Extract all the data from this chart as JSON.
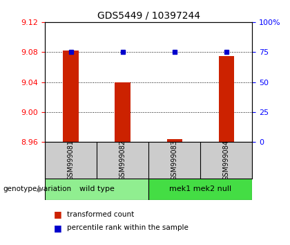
{
  "title": "GDS5449 / 10397244",
  "samples": [
    "GSM999081",
    "GSM999082",
    "GSM999083",
    "GSM999084"
  ],
  "red_values": [
    9.082,
    9.04,
    8.964,
    9.075
  ],
  "blue_values": [
    75,
    75,
    75,
    75
  ],
  "ylim_left": [
    8.96,
    9.12
  ],
  "ylim_right": [
    0,
    100
  ],
  "yticks_left": [
    8.96,
    9.0,
    9.04,
    9.08,
    9.12
  ],
  "yticks_right": [
    0,
    25,
    50,
    75,
    100
  ],
  "ytick_labels_right": [
    "0",
    "25",
    "50",
    "75",
    "100%"
  ],
  "groups": [
    {
      "label": "wild type",
      "samples": [
        0,
        1
      ],
      "color": "#90EE90"
    },
    {
      "label": "mek1 mek2 null",
      "samples": [
        2,
        3
      ],
      "color": "#44DD44"
    }
  ],
  "bar_color": "#CC2200",
  "marker_color": "#0000CC",
  "bg_color": "#FFFFFF",
  "plot_bg": "#FFFFFF",
  "genotype_label": "genotype/variation",
  "legend_items": [
    {
      "label": "transformed count",
      "color": "#CC2200"
    },
    {
      "label": "percentile rank within the sample",
      "color": "#0000CC"
    }
  ],
  "grid_color": "#000000"
}
